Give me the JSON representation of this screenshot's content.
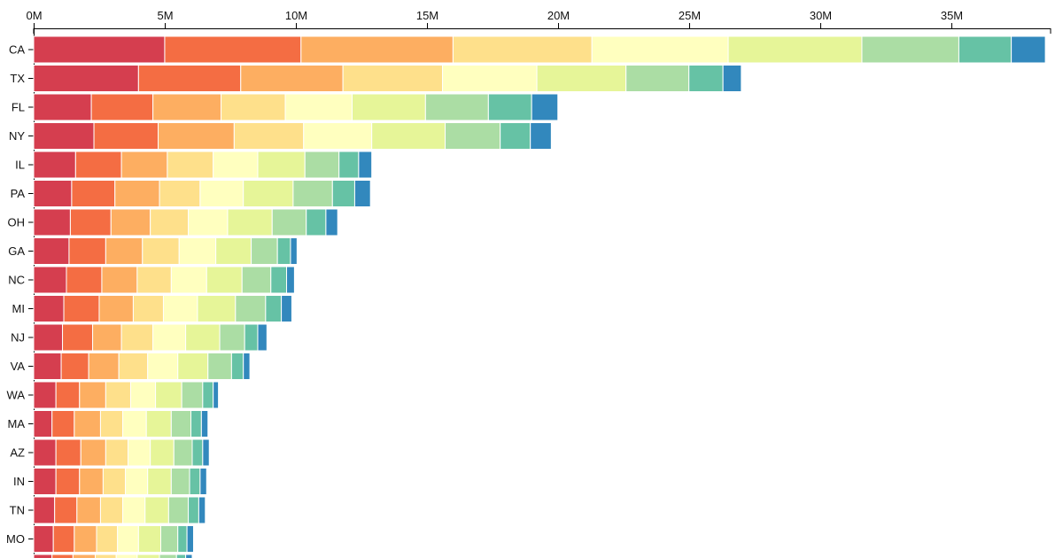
{
  "chart_data": {
    "type": "bar",
    "orientation": "horizontal",
    "stacked": true,
    "title": "",
    "xlabel": "",
    "ylabel": "",
    "xlim": [
      0,
      38800000
    ],
    "x_ticks": [
      {
        "value": 0,
        "label": "0M"
      },
      {
        "value": 5000000,
        "label": "5M"
      },
      {
        "value": 10000000,
        "label": "10M"
      },
      {
        "value": 15000000,
        "label": "15M"
      },
      {
        "value": 20000000,
        "label": "20M"
      },
      {
        "value": 25000000,
        "label": "25M"
      },
      {
        "value": 30000000,
        "label": "30M"
      },
      {
        "value": 35000000,
        "label": "35M"
      }
    ],
    "axis_position": "top",
    "legend": "none",
    "categories": [
      "CA",
      "TX",
      "FL",
      "NY",
      "IL",
      "PA",
      "OH",
      "GA",
      "NC",
      "MI",
      "NJ",
      "VA",
      "WA",
      "MA",
      "AZ",
      "IN",
      "TN",
      "MO",
      ""
    ],
    "series": [
      {
        "color": "#d53e4f",
        "values": [
          5000000,
          4000000,
          2200000,
          2300000,
          1600000,
          1450000,
          1400000,
          1350000,
          1250000,
          1150000,
          1100000,
          1050000,
          850000,
          700000,
          850000,
          850000,
          800000,
          750000,
          700000
        ]
      },
      {
        "color": "#f46d43",
        "values": [
          5200000,
          3900000,
          2350000,
          2450000,
          1750000,
          1650000,
          1550000,
          1400000,
          1350000,
          1350000,
          1150000,
          1050000,
          900000,
          850000,
          950000,
          900000,
          850000,
          800000,
          800000
        ]
      },
      {
        "color": "#fdae61",
        "values": [
          5800000,
          3900000,
          2600000,
          2900000,
          1750000,
          1700000,
          1500000,
          1400000,
          1350000,
          1300000,
          1100000,
          1150000,
          1000000,
          1000000,
          950000,
          900000,
          900000,
          850000,
          850000
        ]
      },
      {
        "color": "#fee08b",
        "values": [
          5300000,
          3800000,
          2450000,
          2650000,
          1750000,
          1550000,
          1450000,
          1400000,
          1300000,
          1150000,
          1200000,
          1100000,
          950000,
          850000,
          850000,
          850000,
          850000,
          800000,
          800000
        ]
      },
      {
        "color": "#ffffbf",
        "values": [
          5200000,
          3600000,
          2550000,
          2600000,
          1700000,
          1650000,
          1500000,
          1400000,
          1350000,
          1300000,
          1250000,
          1150000,
          950000,
          900000,
          850000,
          850000,
          850000,
          800000,
          800000
        ]
      },
      {
        "color": "#e6f598",
        "values": [
          5100000,
          3400000,
          2800000,
          2800000,
          1800000,
          1900000,
          1700000,
          1350000,
          1350000,
          1450000,
          1300000,
          1150000,
          1000000,
          950000,
          900000,
          900000,
          900000,
          850000,
          850000
        ]
      },
      {
        "color": "#abdda4",
        "values": [
          3700000,
          2400000,
          2400000,
          2100000,
          1300000,
          1500000,
          1300000,
          1000000,
          1100000,
          1150000,
          950000,
          900000,
          800000,
          750000,
          700000,
          700000,
          750000,
          650000,
          650000
        ]
      },
      {
        "color": "#66c2a5",
        "values": [
          2000000,
          1300000,
          1650000,
          1150000,
          750000,
          850000,
          750000,
          500000,
          600000,
          600000,
          500000,
          450000,
          400000,
          400000,
          400000,
          400000,
          400000,
          350000,
          350000
        ]
      },
      {
        "color": "#3288bd",
        "values": [
          1300000,
          700000,
          1000000,
          800000,
          500000,
          600000,
          450000,
          250000,
          300000,
          400000,
          350000,
          250000,
          200000,
          250000,
          250000,
          250000,
          250000,
          250000,
          250000
        ]
      }
    ]
  }
}
